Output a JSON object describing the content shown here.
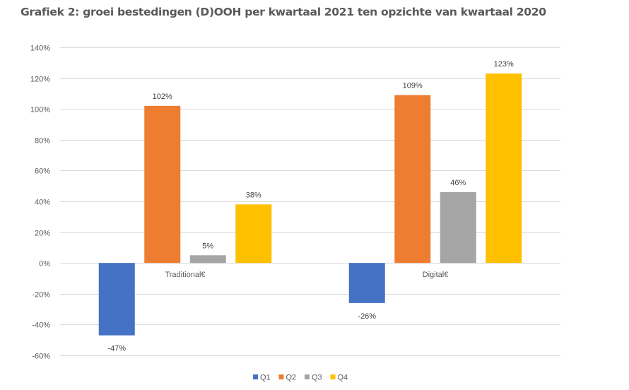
{
  "chart_data": {
    "type": "bar",
    "title": "Grafiek 2: groei bestedingen (D)OOH per kwartaal 2021 ten opzichte van kwartaal 2020",
    "xlabel": "",
    "ylabel": "",
    "categories": [
      "Traditional€",
      "Digital€"
    ],
    "series": [
      {
        "name": "Q1",
        "color": "#4472C4",
        "values": [
          -47,
          -26
        ],
        "labels": [
          "-47%",
          "-26%"
        ]
      },
      {
        "name": "Q2",
        "color": "#ED7D31",
        "values": [
          102,
          109
        ],
        "labels": [
          "102%",
          "109%"
        ]
      },
      {
        "name": "Q3",
        "color": "#A5A5A5",
        "values": [
          5,
          46
        ],
        "labels": [
          "5%",
          "46%"
        ]
      },
      {
        "name": "Q4",
        "color": "#FFC000",
        "values": [
          38,
          123
        ],
        "labels": [
          "38%",
          "123%"
        ]
      }
    ],
    "ylim": [
      -60,
      140
    ],
    "yticks": [
      140,
      120,
      100,
      80,
      60,
      40,
      20,
      0,
      -20,
      -40,
      -60
    ],
    "ytick_labels": [
      "140%",
      "120%",
      "100%",
      "80%",
      "60%",
      "40%",
      "20%",
      "0%",
      "-20%",
      "-40%",
      "-60%"
    ],
    "grid": true,
    "legend_position": "bottom"
  }
}
